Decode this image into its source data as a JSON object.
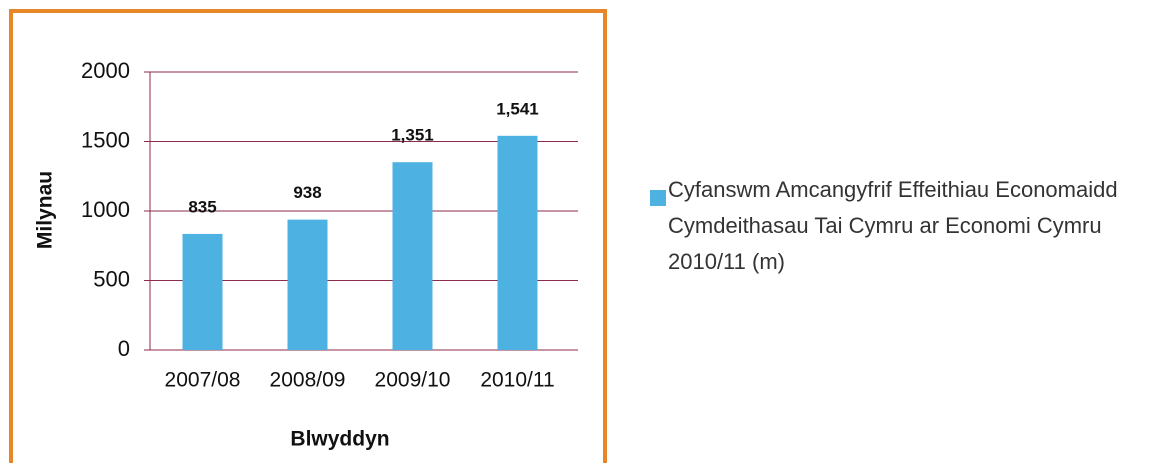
{
  "chart_data": {
    "type": "bar",
    "categories": [
      "2007/08",
      "2008/09",
      "2009/10",
      "2010/11"
    ],
    "series": [
      {
        "name": "Cyfanswm Amcangyfrif Effeithiau Economaidd Cymdeithasau Tai Cymru ar Economi Cymru 2010/11 (m)",
        "color": "#4db1e1",
        "values": [
          835,
          938,
          1351,
          1541
        ],
        "value_labels": [
          "835",
          "938",
          "1,351",
          "1,541"
        ]
      }
    ],
    "ylim": [
      0,
      2000
    ],
    "yticks": [
      0,
      500,
      1000,
      1500,
      2000
    ],
    "xlabel": "Blwyddyn",
    "ylabel": "Milynau",
    "grid": true,
    "legend": "right"
  }
}
